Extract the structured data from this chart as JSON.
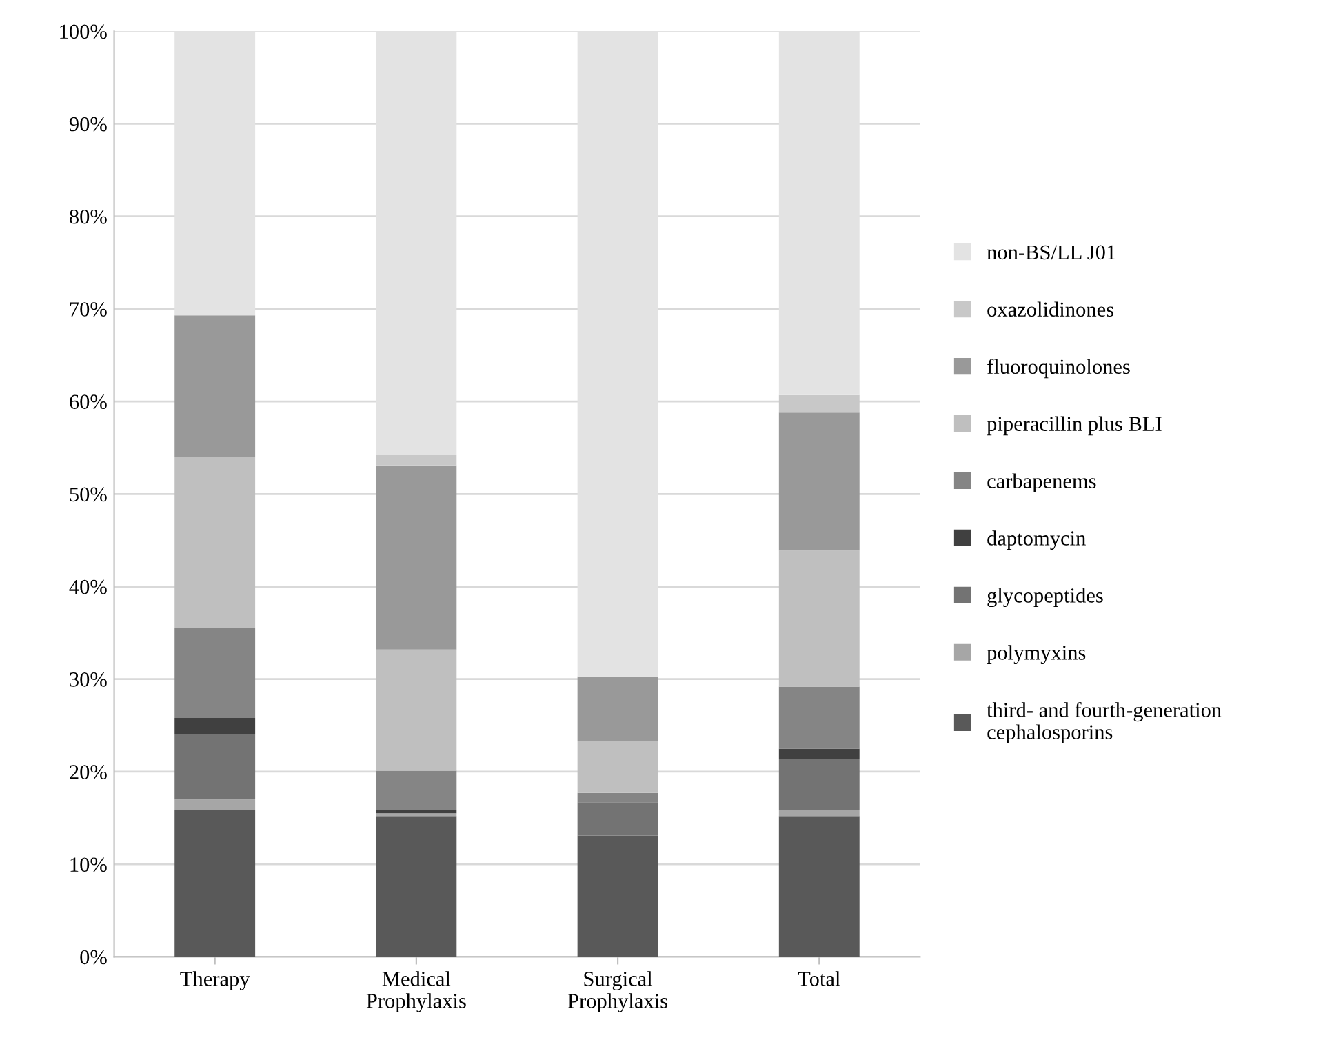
{
  "chart_data": {
    "type": "bar",
    "stacked": true,
    "categories": [
      "Therapy",
      "Medical\nProphylaxis",
      "Surgical\nProphylaxis",
      "Total"
    ],
    "series": [
      {
        "name": "third- and fourth-generation\ncephalosporins",
        "color": "#595959",
        "values": [
          15.9,
          15.2,
          13.1,
          15.2
        ]
      },
      {
        "name": "polymyxins",
        "color": "#a6a6a6",
        "values": [
          1.1,
          0.3,
          0,
          0.7
        ]
      },
      {
        "name": "glycopeptides",
        "color": "#737373",
        "values": [
          7.1,
          0,
          3.6,
          5.5
        ]
      },
      {
        "name": "daptomycin",
        "color": "#404040",
        "values": [
          1.7,
          0.4,
          0,
          1.1
        ]
      },
      {
        "name": "carbapenems",
        "color": "#858585",
        "values": [
          9.7,
          4.2,
          1.0,
          6.7
        ]
      },
      {
        "name": "piperacillin plus BLI",
        "color": "#bfbfbf",
        "values": [
          18.5,
          13.1,
          5.6,
          14.7
        ]
      },
      {
        "name": "fluoroquinolones",
        "color": "#999999",
        "values": [
          15.3,
          19.9,
          7.0,
          14.9
        ]
      },
      {
        "name": "oxazolidinones",
        "color": "#c8c8c8",
        "values": [
          0,
          1.1,
          0,
          1.9
        ]
      },
      {
        "name": "non-BS/LL J01",
        "color": "#e3e3e3",
        "values": [
          30.7,
          45.8,
          69.7,
          39.3
        ]
      }
    ],
    "ylim": [
      0,
      100
    ],
    "yticks": [
      {
        "value": 0,
        "label": "0%"
      },
      {
        "value": 10,
        "label": "10%"
      },
      {
        "value": 20,
        "label": "20%"
      },
      {
        "value": 30,
        "label": "30%"
      },
      {
        "value": 40,
        "label": "40%"
      },
      {
        "value": 50,
        "label": "50%"
      },
      {
        "value": 60,
        "label": "60%"
      },
      {
        "value": 70,
        "label": "70%"
      },
      {
        "value": 80,
        "label": "80%"
      },
      {
        "value": 90,
        "label": "90%"
      },
      {
        "value": 100,
        "label": "100%"
      }
    ],
    "grid": "y",
    "legend": "right"
  }
}
